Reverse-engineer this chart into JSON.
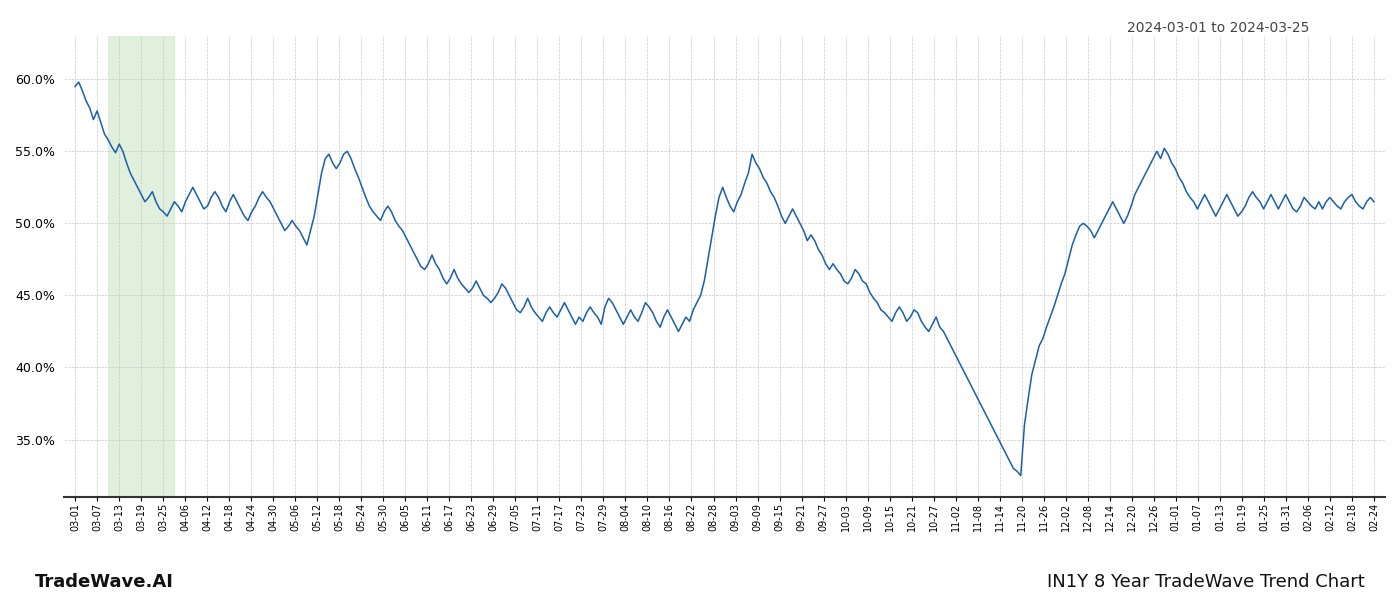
{
  "title_date_range": "2024-03-01 to 2024-03-25",
  "footer_left": "TradeWave.AI",
  "footer_right": "IN1Y 8 Year TradeWave Trend Chart",
  "line_color": "#1a5fa8",
  "line_width": 1.1,
  "highlight_color": "#d6ecd2",
  "highlight_alpha": 0.75,
  "background_color": "#ffffff",
  "grid_color": "#c8c8c8",
  "ylim": [
    31.0,
    63.0
  ],
  "yticks": [
    35.0,
    40.0,
    45.0,
    50.0,
    55.0,
    60.0
  ],
  "highlight_start_label": "03-13",
  "highlight_end_label": "03-25",
  "x_tick_labels": [
    "03-01",
    "03-07",
    "03-13",
    "03-19",
    "03-25",
    "04-06",
    "04-12",
    "04-18",
    "04-24",
    "04-30",
    "05-06",
    "05-12",
    "05-18",
    "05-24",
    "05-30",
    "06-05",
    "06-11",
    "06-17",
    "06-23",
    "06-29",
    "07-05",
    "07-11",
    "07-17",
    "07-23",
    "07-29",
    "08-04",
    "08-10",
    "08-16",
    "08-22",
    "08-28",
    "09-03",
    "09-09",
    "09-15",
    "09-21",
    "09-27",
    "10-03",
    "10-09",
    "10-15",
    "10-21",
    "10-27",
    "11-02",
    "11-08",
    "11-14",
    "11-20",
    "11-26",
    "12-02",
    "12-08",
    "12-14",
    "12-20",
    "12-26",
    "01-01",
    "01-07",
    "01-13",
    "01-19",
    "01-25",
    "01-31",
    "02-06",
    "02-12",
    "02-18",
    "02-24"
  ],
  "values": [
    59.5,
    59.8,
    59.2,
    58.5,
    58.0,
    57.2,
    57.8,
    57.0,
    56.2,
    55.8,
    55.3,
    54.9,
    55.5,
    55.0,
    54.2,
    53.5,
    53.0,
    52.5,
    52.0,
    51.5,
    51.8,
    52.2,
    51.5,
    51.0,
    50.8,
    50.5,
    51.0,
    51.5,
    51.2,
    50.8,
    51.5,
    52.0,
    52.5,
    52.0,
    51.5,
    51.0,
    51.2,
    51.8,
    52.2,
    51.8,
    51.2,
    50.8,
    51.5,
    52.0,
    51.5,
    51.0,
    50.5,
    50.2,
    50.8,
    51.2,
    51.8,
    52.2,
    51.8,
    51.5,
    51.0,
    50.5,
    50.0,
    49.5,
    49.8,
    50.2,
    49.8,
    49.5,
    49.0,
    48.5,
    49.5,
    50.5,
    52.0,
    53.5,
    54.5,
    54.8,
    54.2,
    53.8,
    54.2,
    54.8,
    55.0,
    54.5,
    53.8,
    53.2,
    52.5,
    51.8,
    51.2,
    50.8,
    50.5,
    50.2,
    50.8,
    51.2,
    50.8,
    50.2,
    49.8,
    49.5,
    49.0,
    48.5,
    48.0,
    47.5,
    47.0,
    46.8,
    47.2,
    47.8,
    47.2,
    46.8,
    46.2,
    45.8,
    46.2,
    46.8,
    46.2,
    45.8,
    45.5,
    45.2,
    45.5,
    46.0,
    45.5,
    45.0,
    44.8,
    44.5,
    44.8,
    45.2,
    45.8,
    45.5,
    45.0,
    44.5,
    44.0,
    43.8,
    44.2,
    44.8,
    44.2,
    43.8,
    43.5,
    43.2,
    43.8,
    44.2,
    43.8,
    43.5,
    44.0,
    44.5,
    44.0,
    43.5,
    43.0,
    43.5,
    43.2,
    43.8,
    44.2,
    43.8,
    43.5,
    43.0,
    44.2,
    44.8,
    44.5,
    44.0,
    43.5,
    43.0,
    43.5,
    44.0,
    43.5,
    43.2,
    43.8,
    44.5,
    44.2,
    43.8,
    43.2,
    42.8,
    43.5,
    44.0,
    43.5,
    43.0,
    42.5,
    43.0,
    43.5,
    43.2,
    44.0,
    44.5,
    45.0,
    46.0,
    47.5,
    49.0,
    50.5,
    51.8,
    52.5,
    51.8,
    51.2,
    50.8,
    51.5,
    52.0,
    52.8,
    53.5,
    54.8,
    54.2,
    53.8,
    53.2,
    52.8,
    52.2,
    51.8,
    51.2,
    50.5,
    50.0,
    50.5,
    51.0,
    50.5,
    50.0,
    49.5,
    48.8,
    49.2,
    48.8,
    48.2,
    47.8,
    47.2,
    46.8,
    47.2,
    46.8,
    46.5,
    46.0,
    45.8,
    46.2,
    46.8,
    46.5,
    46.0,
    45.8,
    45.2,
    44.8,
    44.5,
    44.0,
    43.8,
    43.5,
    43.2,
    43.8,
    44.2,
    43.8,
    43.2,
    43.5,
    44.0,
    43.8,
    43.2,
    42.8,
    42.5,
    43.0,
    43.5,
    42.8,
    42.5,
    42.0,
    41.5,
    41.0,
    40.5,
    40.0,
    39.5,
    39.0,
    38.5,
    38.0,
    37.5,
    37.0,
    36.5,
    36.0,
    35.5,
    35.0,
    34.5,
    34.0,
    33.5,
    33.0,
    32.8,
    32.5,
    36.0,
    37.8,
    39.5,
    40.5,
    41.5,
    42.0,
    42.8,
    43.5,
    44.2,
    45.0,
    45.8,
    46.5,
    47.5,
    48.5,
    49.2,
    49.8,
    50.0,
    49.8,
    49.5,
    49.0,
    49.5,
    50.0,
    50.5,
    51.0,
    51.5,
    51.0,
    50.5,
    50.0,
    50.5,
    51.2,
    52.0,
    52.5,
    53.0,
    53.5,
    54.0,
    54.5,
    55.0,
    54.5,
    55.2,
    54.8,
    54.2,
    53.8,
    53.2,
    52.8,
    52.2,
    51.8,
    51.5,
    51.0,
    51.5,
    52.0,
    51.5,
    51.0,
    50.5,
    51.0,
    51.5,
    52.0,
    51.5,
    51.0,
    50.5,
    50.8,
    51.2,
    51.8,
    52.2,
    51.8,
    51.5,
    51.0,
    51.5,
    52.0,
    51.5,
    51.0,
    51.5,
    52.0,
    51.5,
    51.0,
    50.8,
    51.2,
    51.8,
    51.5,
    51.2,
    51.0,
    51.5,
    51.0,
    51.5,
    51.8,
    51.5,
    51.2,
    51.0,
    51.5,
    51.8,
    52.0,
    51.5,
    51.2,
    51.0,
    51.5,
    51.8,
    51.5
  ]
}
